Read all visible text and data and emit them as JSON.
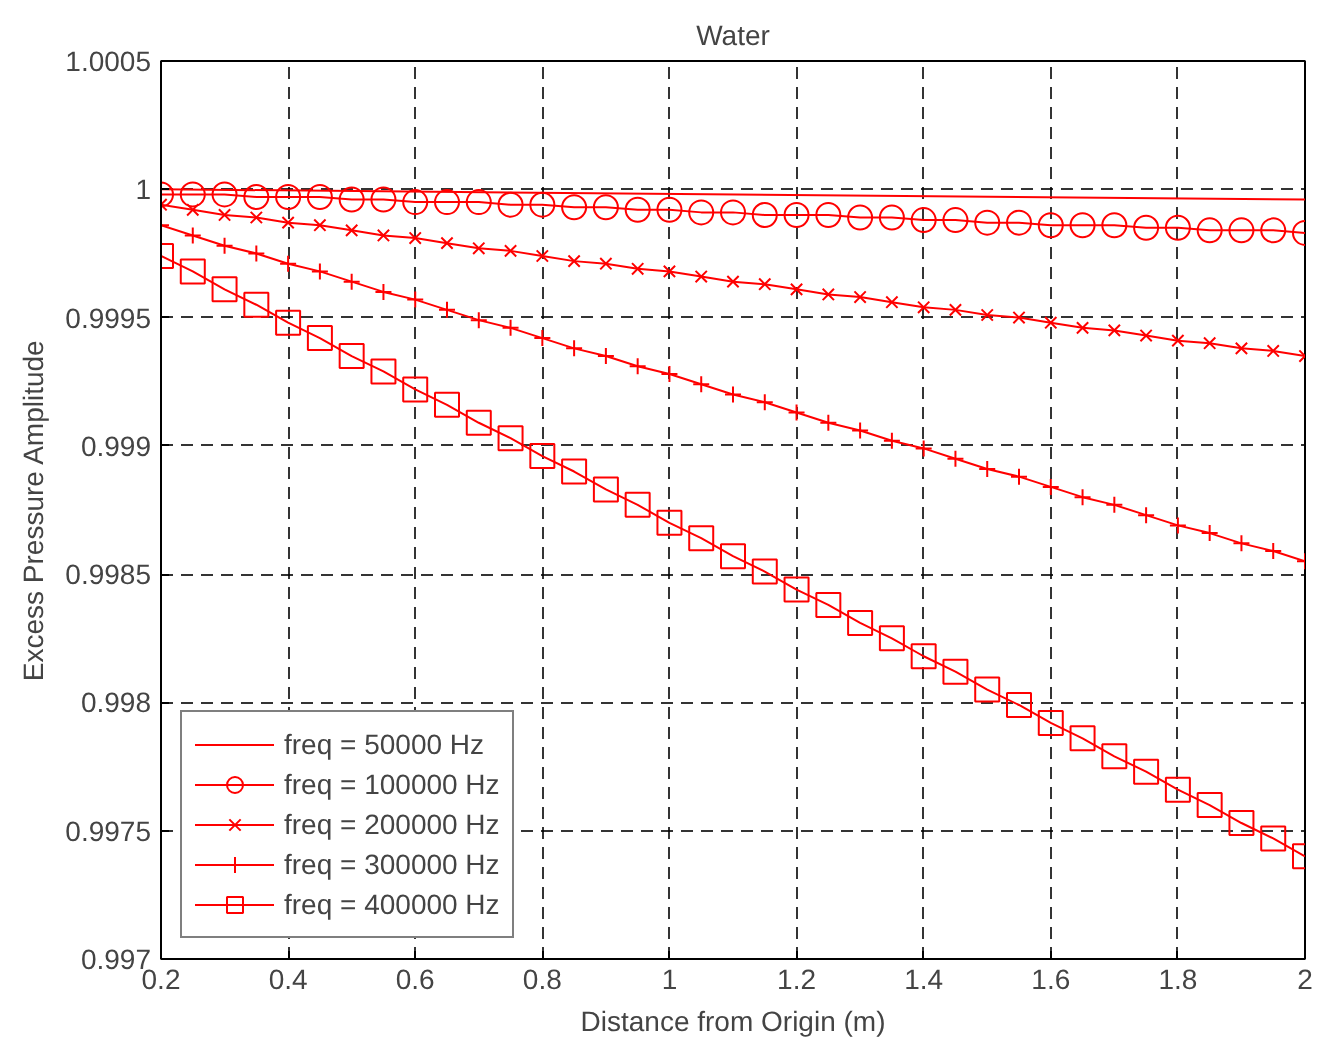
{
  "chart_data": {
    "type": "line",
    "title": "Water",
    "xlabel": "Distance from Origin (m)",
    "ylabel": "Excess Pressure Amplitude",
    "x": [
      0.2,
      0.25,
      0.3,
      0.35,
      0.4,
      0.45,
      0.5,
      0.55,
      0.6,
      0.65,
      0.7,
      0.75,
      0.8,
      0.85,
      0.9,
      0.95,
      1.0,
      1.05,
      1.1,
      1.15,
      1.2,
      1.25,
      1.3,
      1.35,
      1.4,
      1.45,
      1.5,
      1.55,
      1.6,
      1.65,
      1.7,
      1.75,
      1.8,
      1.85,
      1.9,
      1.95,
      2.0
    ],
    "series": [
      {
        "name": "freq = 50000 Hz",
        "color": "#ff0000",
        "marker": "none",
        "x": [
          0.2,
          2.0
        ],
        "values": [
          1.0,
          0.99996
        ]
      },
      {
        "name": "freq = 100000 Hz",
        "color": "#ff0000",
        "marker": "circle",
        "values": [
          0.99998,
          0.99998,
          0.99998,
          0.99997,
          0.99997,
          0.99997,
          0.99996,
          0.99996,
          0.99995,
          0.99995,
          0.99995,
          0.99994,
          0.99994,
          0.99993,
          0.99993,
          0.99992,
          0.99992,
          0.99991,
          0.99991,
          0.9999,
          0.9999,
          0.9999,
          0.99989,
          0.99989,
          0.99988,
          0.99988,
          0.99987,
          0.99987,
          0.99986,
          0.99986,
          0.99986,
          0.99985,
          0.99985,
          0.99984,
          0.99984,
          0.99984,
          0.99983
        ]
      },
      {
        "name": "freq = 200000 Hz",
        "color": "#ff0000",
        "marker": "x",
        "values": [
          0.99994,
          0.99992,
          0.9999,
          0.99989,
          0.99987,
          0.99986,
          0.99984,
          0.99982,
          0.99981,
          0.99979,
          0.99977,
          0.99976,
          0.99974,
          0.99972,
          0.99971,
          0.99969,
          0.99968,
          0.99966,
          0.99964,
          0.99963,
          0.99961,
          0.99959,
          0.99958,
          0.99956,
          0.99954,
          0.99953,
          0.99951,
          0.9995,
          0.99948,
          0.99946,
          0.99945,
          0.99943,
          0.99941,
          0.9994,
          0.99938,
          0.99937,
          0.99935
        ]
      },
      {
        "name": "freq = 300000 Hz",
        "color": "#ff0000",
        "marker": "cross",
        "values": [
          0.99986,
          0.99982,
          0.99978,
          0.99975,
          0.99971,
          0.99968,
          0.99964,
          0.9996,
          0.99957,
          0.99953,
          0.99949,
          0.99946,
          0.99942,
          0.99938,
          0.99935,
          0.99931,
          0.99928,
          0.99924,
          0.9992,
          0.99917,
          0.99913,
          0.99909,
          0.99906,
          0.99902,
          0.99899,
          0.99895,
          0.99891,
          0.99888,
          0.99884,
          0.9988,
          0.99877,
          0.99873,
          0.99869,
          0.99866,
          0.99862,
          0.99859,
          0.99855
        ]
      },
      {
        "name": "freq = 400000 Hz",
        "color": "#ff0000",
        "marker": "square",
        "values": [
          0.99974,
          0.99968,
          0.99961,
          0.99955,
          0.99948,
          0.99942,
          0.99935,
          0.99929,
          0.99922,
          0.99916,
          0.99909,
          0.99903,
          0.99896,
          0.9989,
          0.99883,
          0.99877,
          0.9987,
          0.99864,
          0.99857,
          0.99851,
          0.99844,
          0.99838,
          0.99831,
          0.99825,
          0.99818,
          0.99812,
          0.99805,
          0.99799,
          0.99792,
          0.99786,
          0.99779,
          0.99773,
          0.99766,
          0.9976,
          0.99753,
          0.99747,
          0.9974
        ]
      }
    ],
    "xlim": [
      0.2,
      2
    ],
    "xticks": [
      0.2,
      0.4,
      0.6,
      0.8,
      1,
      1.2,
      1.4,
      1.6,
      1.8,
      2
    ],
    "ylim": [
      0.997,
      1.0005
    ],
    "yticks": [
      0.997,
      0.9975,
      0.998,
      0.9985,
      0.999,
      0.9995,
      1,
      1.0005
    ],
    "grid": true,
    "legend": "bottom left",
    "line_style": "solid"
  }
}
